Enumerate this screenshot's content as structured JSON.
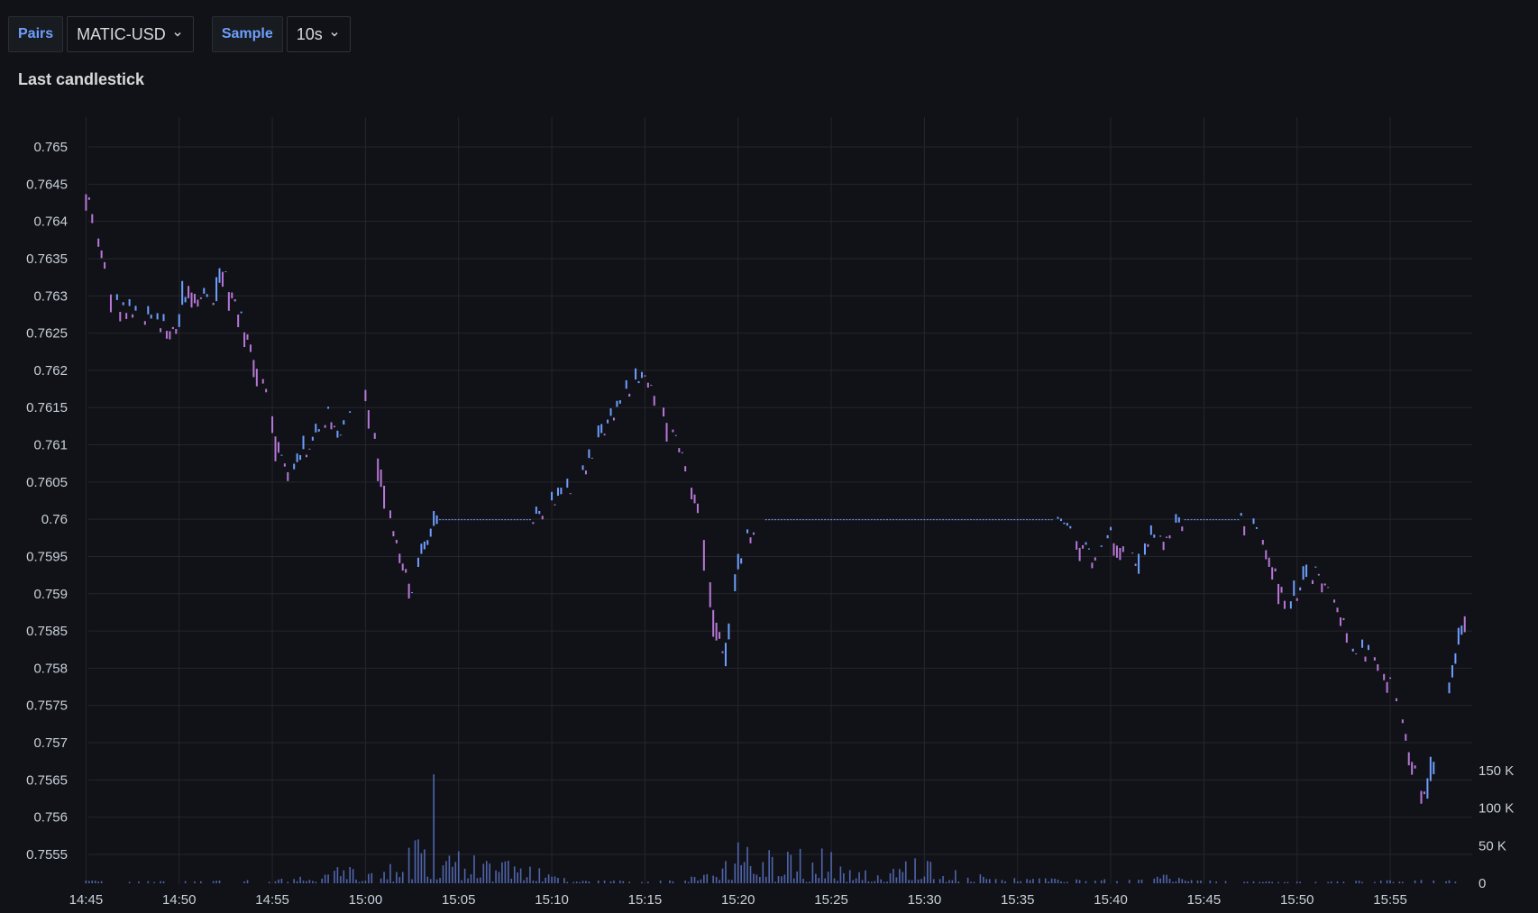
{
  "toolbar": {
    "pairs_label": "Pairs",
    "pair_value": "MATIC-USD",
    "sample_label": "Sample",
    "sample_value": "10s",
    "chevron_icon": "chevron-down-icon"
  },
  "panel": {
    "title": "Last candlestick"
  },
  "colors": {
    "up": "#6e9fff",
    "down": "#b877d9",
    "volume": "#5a74c8",
    "grid": "#24262c",
    "background": "#111217"
  },
  "chart_data": {
    "type": "candlestick",
    "title": "Last candlestick",
    "x_tick_labels": [
      "14:45",
      "14:50",
      "14:55",
      "15:00",
      "15:05",
      "15:10",
      "15:15",
      "15:20",
      "15:25",
      "15:30",
      "15:35",
      "15:40",
      "15:45",
      "15:50",
      "15:55"
    ],
    "y_tick_labels": [
      "0.765",
      "0.7645",
      "0.764",
      "0.7635",
      "0.763",
      "0.7625",
      "0.762",
      "0.7615",
      "0.761",
      "0.7605",
      "0.76",
      "0.7595",
      "0.759",
      "0.7585",
      "0.758",
      "0.7575",
      "0.757",
      "0.7565",
      "0.756",
      "0.7555"
    ],
    "ylim": [
      0.7551,
      0.7654
    ],
    "xlim_minutes_after_1445": [
      -0.6,
      74.4
    ],
    "volume_axis_labels": [
      "150 K",
      "100 K",
      "50 K",
      "0"
    ],
    "volume_ylim": [
      0,
      150000
    ],
    "grid": true,
    "price_path": [
      [
        0,
        0.7644
      ],
      [
        0.5,
        0.7639
      ],
      [
        1,
        0.7634
      ],
      [
        1.5,
        0.7629
      ],
      [
        3,
        0.7627
      ],
      [
        4,
        0.7626
      ],
      [
        5,
        0.7626
      ],
      [
        5.5,
        0.7632
      ],
      [
        6,
        0.763
      ],
      [
        7,
        0.7629
      ],
      [
        7.3,
        0.7634
      ],
      [
        8,
        0.7629
      ],
      [
        8.6,
        0.7625
      ],
      [
        9.3,
        0.762
      ],
      [
        10,
        0.7614
      ],
      [
        10.5,
        0.7608
      ],
      [
        11,
        0.7606
      ],
      [
        12,
        0.761
      ],
      [
        13,
        0.7614
      ],
      [
        13.5,
        0.7611
      ],
      [
        14,
        0.7614
      ],
      [
        15,
        0.7617
      ],
      [
        15.4,
        0.7612
      ],
      [
        16,
        0.7605
      ],
      [
        16.5,
        0.7598
      ],
      [
        17,
        0.7594
      ],
      [
        17.5,
        0.7591
      ],
      [
        18,
        0.7595
      ],
      [
        18.6,
        0.7598
      ],
      [
        19,
        0.76
      ],
      [
        21,
        0.76
      ],
      [
        24,
        0.76
      ],
      [
        25,
        0.7602
      ],
      [
        26,
        0.7604
      ],
      [
        27,
        0.7608
      ],
      [
        28,
        0.7613
      ],
      [
        29,
        0.7617
      ],
      [
        30,
        0.7619
      ],
      [
        31,
        0.7615
      ],
      [
        32,
        0.7608
      ],
      [
        33,
        0.7601
      ],
      [
        33.7,
        0.7588
      ],
      [
        34.3,
        0.758
      ],
      [
        34.6,
        0.7587
      ],
      [
        35,
        0.7593
      ],
      [
        35.5,
        0.7598
      ],
      [
        36.5,
        0.76
      ],
      [
        44,
        0.76
      ],
      [
        50,
        0.76
      ],
      [
        52,
        0.76
      ],
      [
        53,
        0.7598
      ],
      [
        54,
        0.7595
      ],
      [
        55,
        0.7598
      ],
      [
        56,
        0.7596
      ],
      [
        56.5,
        0.7592
      ],
      [
        57,
        0.7597
      ],
      [
        58,
        0.7598
      ],
      [
        59,
        0.76
      ],
      [
        62,
        0.76
      ],
      [
        63,
        0.7598
      ],
      [
        64,
        0.7592
      ],
      [
        64.5,
        0.7587
      ],
      [
        65,
        0.759
      ],
      [
        66,
        0.7593
      ],
      [
        66.8,
        0.759
      ],
      [
        67.5,
        0.7586
      ],
      [
        68,
        0.7582
      ],
      [
        69,
        0.7582
      ],
      [
        70,
        0.7578
      ],
      [
        70.5,
        0.7574
      ],
      [
        71,
        0.7569
      ],
      [
        71.5,
        0.7565
      ],
      [
        72,
        0.7562
      ],
      [
        72.5,
        0.7568
      ],
      [
        73,
        0.7575
      ],
      [
        73.5,
        0.7581
      ],
      [
        74,
        0.7587
      ],
      [
        74.4,
        0.7582
      ]
    ],
    "volume_profile": [
      [
        0,
        3000
      ],
      [
        10,
        4000
      ],
      [
        13,
        10000
      ],
      [
        14,
        30000
      ],
      [
        15,
        12000
      ],
      [
        16,
        25000
      ],
      [
        18,
        50000
      ],
      [
        19,
        30000
      ],
      [
        20,
        35000
      ],
      [
        21,
        30000
      ],
      [
        22,
        45000
      ],
      [
        23,
        25000
      ],
      [
        24,
        20000
      ],
      [
        25,
        12000
      ],
      [
        26,
        3000
      ],
      [
        30,
        3000
      ],
      [
        33,
        8000
      ],
      [
        34,
        20000
      ],
      [
        35,
        45000
      ],
      [
        36,
        35000
      ],
      [
        37,
        40000
      ],
      [
        38,
        35000
      ],
      [
        39,
        45000
      ],
      [
        40,
        35000
      ],
      [
        41,
        25000
      ],
      [
        42,
        15000
      ],
      [
        43,
        10000
      ],
      [
        44,
        35000
      ],
      [
        45,
        25000
      ],
      [
        46,
        30000
      ],
      [
        47,
        8000
      ],
      [
        48,
        10000
      ],
      [
        50,
        6000
      ],
      [
        52,
        5000
      ],
      [
        53,
        6000
      ],
      [
        54,
        4000
      ],
      [
        56,
        5000
      ],
      [
        57,
        4000
      ],
      [
        58,
        12000
      ],
      [
        59,
        5000
      ],
      [
        60,
        3000
      ],
      [
        62,
        2000
      ],
      [
        66,
        2000
      ],
      [
        69,
        3000
      ],
      [
        72,
        4000
      ],
      [
        74,
        3000
      ]
    ]
  }
}
